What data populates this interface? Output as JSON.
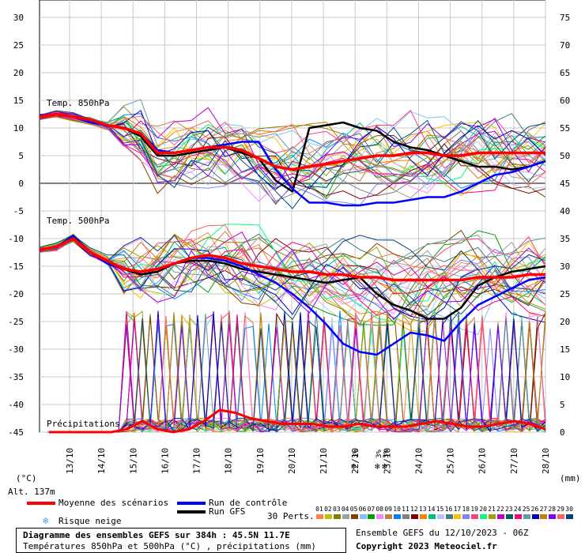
{
  "chart_data": {
    "type": "line",
    "title": "Diagramme des ensembles GEFS sur 384h : 45.5N 11.7E",
    "subtitle": "Températures 850hPa et 500hPa (°C) , précipitations (mm)",
    "x_ticks": [
      "13/10",
      "14/10",
      "15/10",
      "16/10",
      "17/10",
      "18/10",
      "19/10",
      "20/10",
      "21/10",
      "22/10",
      "23/10",
      "24/10",
      "25/10",
      "26/10",
      "27/10",
      "28/10"
    ],
    "y_left_ticks": [
      30,
      25,
      20,
      15,
      10,
      5,
      0,
      -5,
      -10,
      -15,
      -20,
      -25,
      -30,
      -35,
      -40,
      -45
    ],
    "y_right_ticks": [
      75,
      70,
      65,
      60,
      55,
      50,
      45,
      40,
      35,
      30,
      25,
      20,
      15,
      10,
      5,
      0
    ],
    "ylim_left": [
      -45,
      30
    ],
    "ylim_right": [
      0,
      75
    ],
    "ylabel_left": "(°C)",
    "ylabel_right": "(mm)",
    "altitude": "Alt. 137m",
    "panel_labels": {
      "t850": "Temp. 850hPa",
      "t500": "Temp. 500hPa",
      "precip": "Précipitations"
    },
    "snow_markers": [
      {
        "date": "22/10",
        "text": "3%"
      },
      {
        "date": "23/10",
        "text": "3%"
      },
      {
        "date": "23/10b",
        "text": "3%"
      }
    ],
    "t850": {
      "mean": [
        12.0,
        12.5,
        12.0,
        11.5,
        10.5,
        10.0,
        9.0,
        5.5,
        5.5,
        6.0,
        6.5,
        6.5,
        6.0,
        4.5,
        3.0,
        2.5,
        3.0,
        3.5,
        4.0,
        4.5,
        5.0,
        5.0,
        5.5,
        5.5,
        5.0,
        5.0,
        5.5,
        5.5,
        5.5,
        5.5,
        5.5
      ],
      "control": [
        12.0,
        12.5,
        12.0,
        11.0,
        10.5,
        10.0,
        9.0,
        6.0,
        5.5,
        6.0,
        6.5,
        7.0,
        7.5,
        7.5,
        2.5,
        -1.0,
        -3.5,
        -3.5,
        -4.0,
        -4.0,
        -3.5,
        -3.5,
        -3.0,
        -2.5,
        -2.5,
        -1.5,
        0.0,
        1.5,
        2.0,
        3.0,
        4.0
      ],
      "gfs": [
        12.0,
        12.5,
        12.0,
        11.5,
        10.5,
        10.0,
        8.5,
        5.0,
        5.0,
        5.5,
        6.0,
        6.5,
        5.5,
        4.5,
        0.5,
        -1.5,
        10.0,
        10.5,
        11.0,
        10.0,
        9.5,
        7.5,
        6.5,
        6.0,
        5.0,
        4.0,
        3.0,
        3.0,
        2.5,
        3.0,
        4.0
      ]
    },
    "t500": {
      "mean": [
        -12.0,
        -11.5,
        -10.0,
        -12.5,
        -14.0,
        -15.5,
        -16.0,
        -15.5,
        -14.5,
        -13.5,
        -13.0,
        -13.5,
        -14.5,
        -15.0,
        -15.5,
        -16.0,
        -16.0,
        -16.5,
        -16.5,
        -17.0,
        -17.0,
        -17.5,
        -17.5,
        -17.5,
        -17.5,
        -17.5,
        -17.0,
        -17.0,
        -17.0,
        -16.5,
        -16.5
      ],
      "control": [
        -12.0,
        -11.5,
        -9.5,
        -12.5,
        -14.5,
        -15.5,
        -16.0,
        -15.5,
        -14.5,
        -13.5,
        -13.5,
        -14.0,
        -15.0,
        -16.5,
        -18.0,
        -20.0,
        -22.5,
        -25.5,
        -29.0,
        -30.5,
        -31.0,
        -29.0,
        -27.0,
        -27.5,
        -28.5,
        -25.0,
        -22.0,
        -20.5,
        -19.0,
        -17.5,
        -17.0
      ],
      "gfs": [
        -12.0,
        -11.5,
        -9.5,
        -12.5,
        -14.5,
        -15.5,
        -16.5,
        -16.0,
        -14.5,
        -14.0,
        -14.0,
        -14.5,
        -15.5,
        -16.0,
        -16.5,
        -17.0,
        -17.5,
        -18.0,
        -17.5,
        -17.0,
        -20.0,
        -22.0,
        -23.0,
        -24.5,
        -24.5,
        -22.5,
        -18.5,
        -17.0,
        -16.0,
        -15.5,
        -15.0
      ]
    },
    "precip_mean": [
      0,
      0,
      0,
      0,
      0,
      0.5,
      2.0,
      0.5,
      0,
      0.5,
      2.0,
      4.0,
      3.5,
      2.5,
      2.0,
      1.5,
      1.5,
      1.5,
      1.0,
      1.0,
      1.5,
      1.0,
      1.0,
      1.0,
      1.5,
      2.0,
      1.5,
      1.0,
      1.0,
      1.5,
      2.0,
      1.5,
      0.5
    ]
  },
  "legend": {
    "mean_label": "Moyenne des scénarios",
    "control_label": "Run de contrôle",
    "gfs_label": "Run GFS",
    "snow_label": "Risque neige",
    "perts_label": "30 Perts.",
    "ensemble_info": "Ensemble GEFS du 12/10/2023 - 06Z",
    "copyright": "Copyright 2023 Meteociel.fr",
    "pert_numbers": [
      "01",
      "02",
      "03",
      "04",
      "05",
      "06",
      "07",
      "08",
      "09",
      "10",
      "11",
      "12",
      "13",
      "14",
      "15",
      "16",
      "17",
      "18",
      "19",
      "20",
      "21",
      "22",
      "23",
      "24",
      "25",
      "26",
      "27",
      "28",
      "29",
      "30"
    ]
  },
  "colors": {
    "mean": "#ff0000",
    "control": "#0000ff",
    "gfs": "#000000",
    "grid": "#c8c8c8",
    "zero_line": "#808080",
    "perts": [
      "#ff8040",
      "#c0c000",
      "#808000",
      "#a0a0a0",
      "#804000",
      "#80c0ff",
      "#00a000",
      "#ff80ff",
      "#c08040",
      "#0080ff",
      "#808080",
      "#800000",
      "#ff8000",
      "#00c080",
      "#c0c0ff",
      "#408080",
      "#ffc000",
      "#8080ff",
      "#ff4080",
      "#00ff80",
      "#a0a000",
      "#c000c0",
      "#006060",
      "#ff0080",
      "#60a0a0",
      "#0000c0",
      "#c08000",
      "#8000ff",
      "#ff6060",
      "#004080"
    ]
  }
}
